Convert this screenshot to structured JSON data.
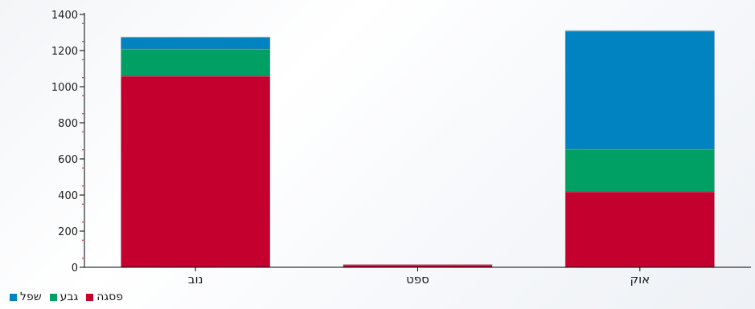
{
  "chart_data": {
    "type": "bar",
    "stacked": true,
    "categories": [
      "נוב",
      "ספט",
      "אוק"
    ],
    "series": [
      {
        "name": "פסגה",
        "color": "#c4002f",
        "values": [
          1060,
          15,
          420
        ]
      },
      {
        "name": "גבע",
        "color": "#00a064",
        "values": [
          150,
          0,
          235
        ]
      },
      {
        "name": "שפל",
        "color": "#0083c0",
        "values": [
          65,
          0,
          655
        ]
      }
    ],
    "yticks": [
      0,
      200,
      400,
      600,
      800,
      1000,
      1200,
      1400
    ],
    "ylim": [
      0,
      1400
    ],
    "grid": false,
    "legend_position": "bottom-left"
  }
}
